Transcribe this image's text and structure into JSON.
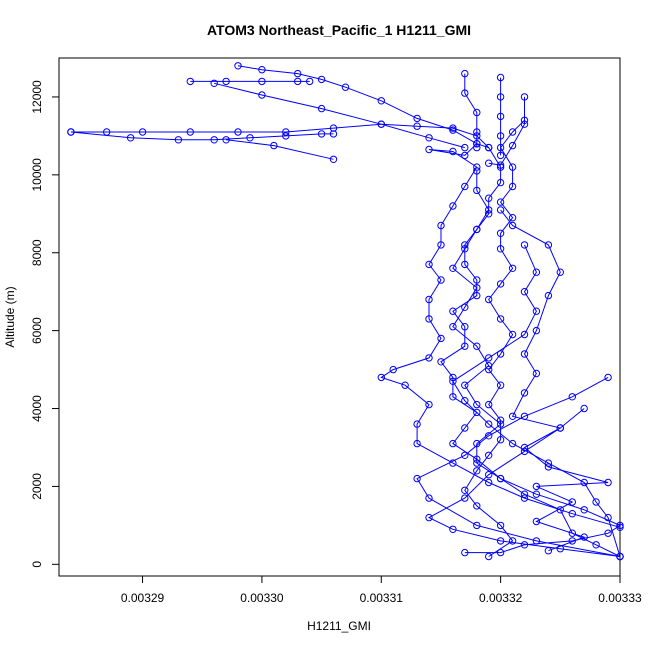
{
  "chart_data": {
    "type": "line",
    "title": "ATOM3 Northeast_Pacific_1 H1211_GMI",
    "xlabel": "H1211_GMI",
    "ylabel": "Altitude (m)",
    "xlim": [
      0.003283,
      0.00333
    ],
    "ylim": [
      -300,
      13000
    ],
    "x_ticks": [
      0.00329,
      0.0033,
      0.00331,
      0.00332,
      0.00333
    ],
    "x_tick_labels": [
      "0.00329",
      "0.00330",
      "0.00331",
      "0.00332",
      "0.00333"
    ],
    "y_ticks": [
      0,
      2000,
      4000,
      6000,
      8000,
      10000,
      12000
    ],
    "y_tick_labels": [
      "0",
      "2000",
      "4000",
      "6000",
      "8000",
      "10000",
      "12000"
    ],
    "series_color": "#0000ff",
    "grid": false,
    "series": [
      {
        "points": [
          [
            0.00333,
            200
          ],
          [
            0.003328,
            500
          ],
          [
            0.003326,
            800
          ],
          [
            0.003325,
            1400
          ],
          [
            0.003322,
            1800
          ],
          [
            0.00332,
            2200
          ],
          [
            0.003318,
            2700
          ],
          [
            0.003316,
            3100
          ],
          [
            0.003317,
            3500
          ],
          [
            0.003318,
            3900
          ],
          [
            0.003316,
            4300
          ],
          [
            0.003316,
            4800
          ],
          [
            0.003315,
            5200
          ],
          [
            0.003317,
            5600
          ],
          [
            0.003317,
            6100
          ],
          [
            0.003316,
            6500
          ],
          [
            0.003318,
            6900
          ],
          [
            0.003318,
            7300
          ],
          [
            0.003317,
            7700
          ],
          [
            0.003317,
            8200
          ],
          [
            0.003318,
            8600
          ],
          [
            0.003319,
            9000
          ],
          [
            0.003319,
            9400
          ],
          [
            0.00332,
            9800
          ],
          [
            0.00332,
            10200
          ],
          [
            0.003319,
            10700
          ],
          [
            0.003318,
            11000
          ],
          [
            0.003316,
            11200
          ],
          [
            0.003313,
            11250
          ],
          [
            0.00331,
            11300
          ],
          [
            0.003306,
            11200
          ],
          [
            0.003302,
            11100
          ],
          [
            0.003298,
            11100
          ],
          [
            0.003294,
            11100
          ],
          [
            0.00329,
            11100
          ],
          [
            0.003287,
            11100
          ],
          [
            0.003284,
            11100
          ]
        ]
      },
      {
        "points": [
          [
            0.003284,
            11100
          ],
          [
            0.003289,
            10950
          ],
          [
            0.003293,
            10900
          ],
          [
            0.003296,
            10900
          ],
          [
            0.003299,
            10950
          ],
          [
            0.003302,
            11000
          ],
          [
            0.003305,
            11050
          ],
          [
            0.003306,
            11050
          ]
        ]
      },
      {
        "points": [
          [
            0.003306,
            10400
          ],
          [
            0.003301,
            10750
          ],
          [
            0.003297,
            10900
          ]
        ]
      },
      {
        "points": [
          [
            0.003319,
            200
          ],
          [
            0.003321,
            600
          ],
          [
            0.00332,
            1000
          ],
          [
            0.003318,
            1500
          ],
          [
            0.003317,
            1900
          ],
          [
            0.003318,
            2400
          ],
          [
            0.003319,
            2800
          ],
          [
            0.00332,
            3200
          ],
          [
            0.00332,
            3700
          ],
          [
            0.003319,
            4100
          ],
          [
            0.00332,
            4600
          ],
          [
            0.003319,
            5000
          ],
          [
            0.00332,
            5400
          ],
          [
            0.003321,
            5900
          ],
          [
            0.00332,
            6300
          ],
          [
            0.003319,
            6800
          ],
          [
            0.00332,
            7200
          ],
          [
            0.003321,
            7600
          ],
          [
            0.00332,
            8100
          ],
          [
            0.00332,
            8500
          ],
          [
            0.003321,
            8900
          ],
          [
            0.00332,
            9300
          ],
          [
            0.003321,
            9700
          ],
          [
            0.003321,
            10200
          ],
          [
            0.00332,
            10700
          ],
          [
            0.003321,
            11100
          ],
          [
            0.003322,
            11400
          ],
          [
            0.003322,
            12000
          ],
          [
            0.003322,
            11300
          ],
          [
            0.003321,
            10750
          ],
          [
            0.00332,
            10250
          ],
          [
            0.003319,
            10300
          ]
        ]
      },
      {
        "points": [
          [
            0.003324,
            350
          ],
          [
            0.003327,
            700
          ],
          [
            0.003323,
            1100
          ],
          [
            0.003326,
            1600
          ],
          [
            0.003323,
            2000
          ],
          [
            0.003329,
            2100
          ],
          [
            0.003324,
            2500
          ],
          [
            0.003322,
            3000
          ],
          [
            0.003325,
            3500
          ],
          [
            0.003321,
            3800
          ],
          [
            0.003322,
            4400
          ],
          [
            0.003323,
            4900
          ],
          [
            0.003322,
            5400
          ],
          [
            0.003323,
            6000
          ],
          [
            0.003324,
            6900
          ],
          [
            0.003325,
            7500
          ],
          [
            0.003324,
            8200
          ],
          [
            0.003321,
            8700
          ],
          [
            0.00332,
            9100
          ]
        ]
      },
      {
        "points": [
          [
            0.00333,
            200
          ],
          [
            0.003323,
            600
          ],
          [
            0.003318,
            1000
          ],
          [
            0.003314,
            1700
          ],
          [
            0.003313,
            2200
          ],
          [
            0.003317,
            2800
          ],
          [
            0.003319,
            3300
          ],
          [
            0.003322,
            3800
          ],
          [
            0.003326,
            4300
          ],
          [
            0.003329,
            4800
          ]
        ]
      },
      {
        "points": [
          [
            0.00333,
            200
          ],
          [
            0.003325,
            400
          ],
          [
            0.00332,
            600
          ],
          [
            0.003316,
            900
          ],
          [
            0.003314,
            1200
          ],
          [
            0.003317,
            1700
          ],
          [
            0.003319,
            2300
          ],
          [
            0.003322,
            2900
          ],
          [
            0.003325,
            3500
          ],
          [
            0.003327,
            4000
          ]
        ]
      },
      {
        "points": [
          [
            0.00333,
            950
          ],
          [
            0.003326,
            1300
          ],
          [
            0.003322,
            1700
          ],
          [
            0.003319,
            2100
          ],
          [
            0.003316,
            2600
          ],
          [
            0.003313,
            3100
          ],
          [
            0.003313,
            3600
          ],
          [
            0.003314,
            4100
          ],
          [
            0.003312,
            4600
          ],
          [
            0.00331,
            4800
          ],
          [
            0.003311,
            5000
          ],
          [
            0.003314,
            5300
          ],
          [
            0.003315,
            5800
          ],
          [
            0.003314,
            6300
          ],
          [
            0.003314,
            6800
          ],
          [
            0.003315,
            7300
          ],
          [
            0.003314,
            7700
          ],
          [
            0.003315,
            8200
          ],
          [
            0.003315,
            8700
          ],
          [
            0.003316,
            9200
          ],
          [
            0.003317,
            9700
          ],
          [
            0.003318,
            10200
          ],
          [
            0.003316,
            10600
          ],
          [
            0.003314,
            10650
          ],
          [
            0.003317,
            10500
          ],
          [
            0.003318,
            10800
          ],
          [
            0.003319,
            10700
          ]
        ]
      },
      {
        "points": [
          [
            0.003298,
            12800
          ],
          [
            0.0033,
            12700
          ],
          [
            0.003303,
            12600
          ],
          [
            0.003305,
            12450
          ],
          [
            0.003307,
            12250
          ],
          [
            0.00331,
            11900
          ],
          [
            0.003313,
            11450
          ],
          [
            0.003316,
            11150
          ],
          [
            0.003318,
            10800
          ]
        ]
      },
      {
        "points": [
          [
            0.003294,
            12400
          ],
          [
            0.003297,
            12400
          ],
          [
            0.0033,
            12400
          ],
          [
            0.003303,
            12400
          ],
          [
            0.003304,
            12400
          ]
        ]
      },
      {
        "points": [
          [
            0.003296,
            12350
          ],
          [
            0.0033,
            12050
          ],
          [
            0.003305,
            11700
          ],
          [
            0.00331,
            11300
          ],
          [
            0.003314,
            10950
          ],
          [
            0.003317,
            10700
          ]
        ]
      },
      {
        "points": [
          [
            0.003317,
            12600
          ],
          [
            0.003317,
            12100
          ],
          [
            0.003318,
            11600
          ],
          [
            0.003318,
            11100
          ],
          [
            0.003318,
            10700
          ]
        ]
      },
      {
        "points": [
          [
            0.00332,
            12500
          ],
          [
            0.00332,
            12000
          ],
          [
            0.00332,
            11500
          ],
          [
            0.00332,
            11000
          ],
          [
            0.00332,
            10500
          ]
        ]
      },
      {
        "points": [
          [
            0.003322,
            8200
          ],
          [
            0.003323,
            7500
          ],
          [
            0.003322,
            7000
          ],
          [
            0.003323,
            6500
          ],
          [
            0.003322,
            5900
          ],
          [
            0.003319,
            5300
          ],
          [
            0.003316,
            4700
          ],
          [
            0.003317,
            4200
          ],
          [
            0.003319,
            3600
          ],
          [
            0.003321,
            3100
          ],
          [
            0.003324,
            2600
          ],
          [
            0.003327,
            2100
          ],
          [
            0.003328,
            1600
          ],
          [
            0.003329,
            1200
          ],
          [
            0.00333,
            200
          ]
        ]
      },
      {
        "points": [
          [
            0.003317,
            300
          ],
          [
            0.00332,
            300
          ],
          [
            0.003322,
            500
          ],
          [
            0.003326,
            600
          ],
          [
            0.003329,
            800
          ],
          [
            0.00333,
            1000
          ],
          [
            0.003327,
            1400
          ],
          [
            0.003323,
            1800
          ],
          [
            0.00332,
            2200
          ],
          [
            0.003318,
            2600
          ],
          [
            0.003318,
            3100
          ],
          [
            0.00332,
            3600
          ],
          [
            0.003318,
            4100
          ],
          [
            0.003317,
            4600
          ],
          [
            0.003319,
            5100
          ],
          [
            0.003318,
            5600
          ],
          [
            0.003316,
            6100
          ],
          [
            0.003317,
            6600
          ],
          [
            0.003318,
            7100
          ],
          [
            0.003316,
            7600
          ],
          [
            0.003317,
            8100
          ],
          [
            0.003318,
            8600
          ],
          [
            0.003319,
            9100
          ],
          [
            0.003318,
            9600
          ],
          [
            0.003318,
            10100
          ]
        ]
      }
    ]
  }
}
